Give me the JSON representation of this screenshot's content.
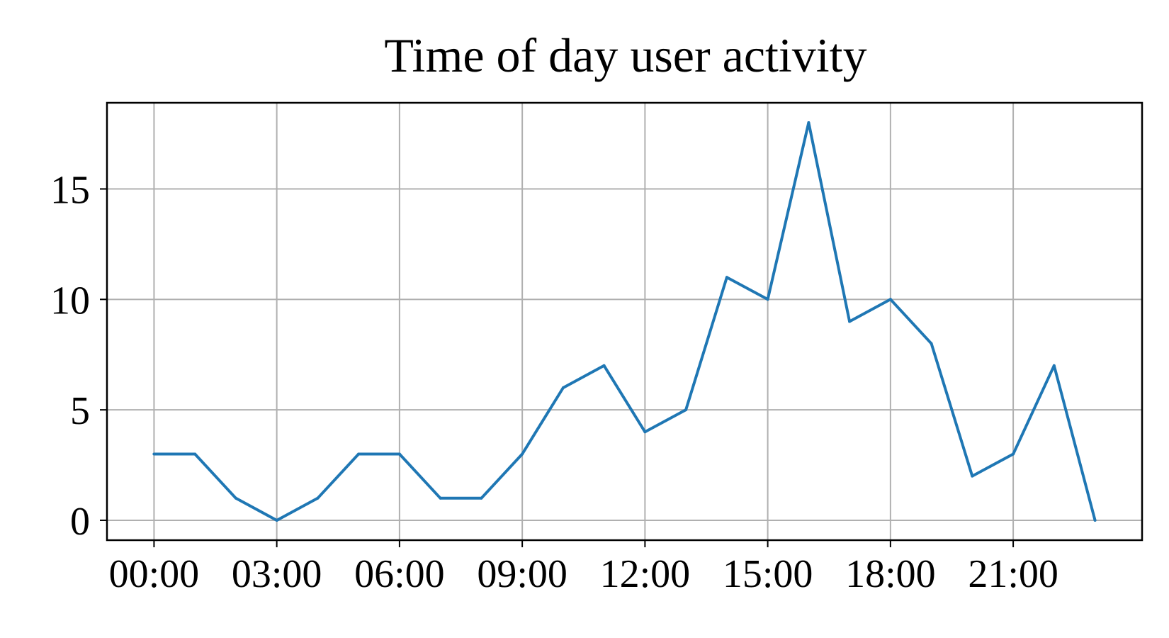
{
  "chart_data": {
    "type": "line",
    "title": "Time of day user activity",
    "xlabel": "",
    "ylabel": "",
    "x": [
      "00:00",
      "01:00",
      "02:00",
      "03:00",
      "04:00",
      "05:00",
      "06:00",
      "07:00",
      "08:00",
      "09:00",
      "10:00",
      "11:00",
      "12:00",
      "13:00",
      "14:00",
      "15:00",
      "16:00",
      "17:00",
      "18:00",
      "19:00",
      "20:00",
      "21:00",
      "22:00",
      "23:00"
    ],
    "series": [
      {
        "values": [
          3,
          3,
          1,
          0,
          1,
          3,
          3,
          1,
          1,
          3,
          6,
          7,
          4,
          5,
          11,
          10,
          18,
          9,
          10,
          8,
          2,
          3,
          7,
          0
        ],
        "color": "#1f77b4"
      }
    ],
    "x_ticks": [
      "00:00",
      "03:00",
      "06:00",
      "09:00",
      "12:00",
      "15:00",
      "18:00",
      "21:00"
    ],
    "x_tick_hours": [
      0,
      3,
      6,
      9,
      12,
      15,
      18,
      21
    ],
    "y_ticks": [
      0,
      5,
      10,
      15
    ],
    "xlim": [
      -1.15,
      24.15
    ],
    "ylim": [
      -0.9,
      18.9
    ],
    "grid": true,
    "legend": false
  }
}
